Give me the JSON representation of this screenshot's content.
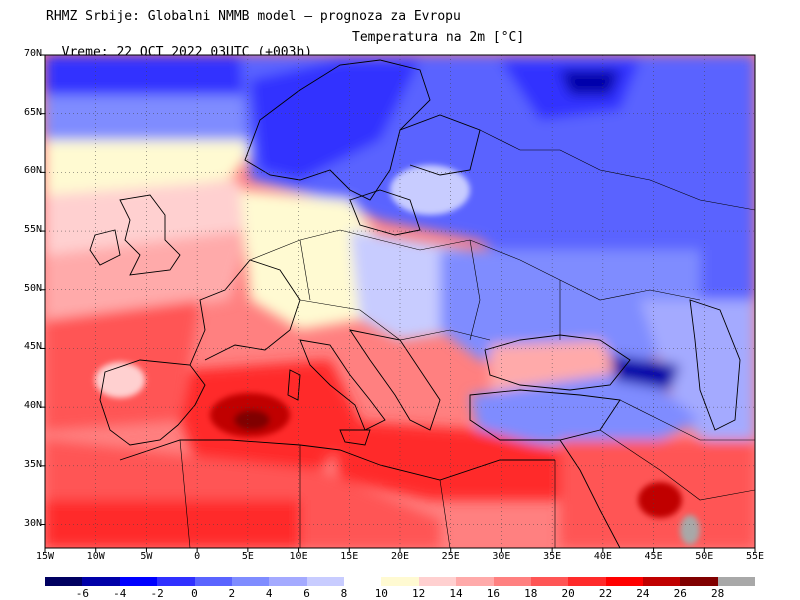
{
  "header": {
    "line1": "RHMZ Srbije: Globalni NMMB model — prognoza za Evropu",
    "line2": "Vreme: 22 OCT 2022 03UTC (+003h)",
    "parameter": "Temperatura na 2m [°C]"
  },
  "map": {
    "lat_ticks": [
      "70N",
      "65N",
      "60N",
      "55N",
      "50N",
      "45N",
      "40N",
      "35N",
      "30N"
    ],
    "lat_values": [
      70,
      65,
      60,
      55,
      50,
      45,
      40,
      35,
      30
    ],
    "lon_ticks": [
      "15W",
      "10W",
      "5W",
      "0",
      "5E",
      "10E",
      "15E",
      "20E",
      "25E",
      "30E",
      "35E",
      "40E",
      "45E",
      "50E",
      "55E"
    ],
    "lon_values": [
      -15,
      -10,
      -5,
      0,
      5,
      10,
      15,
      20,
      25,
      30,
      35,
      40,
      45,
      50,
      55
    ],
    "lon_range": [
      -15,
      55
    ],
    "lat_range": [
      28,
      70
    ]
  },
  "legend": {
    "labels": [
      "-6",
      "-4",
      "-2",
      "0",
      "2",
      "4",
      "6",
      "8",
      "10",
      "12",
      "14",
      "16",
      "18",
      "20",
      "22",
      "24",
      "26",
      "28"
    ],
    "colors": [
      "#000060",
      "#0000a8",
      "#0000ff",
      "#3030ff",
      "#5a64ff",
      "#7f8cff",
      "#a4aaff",
      "#c8ccff",
      "#ffffff",
      "#fffad2",
      "#ffd0d0",
      "#ffaaaa",
      "#ff8080",
      "#ff5555",
      "#ff2a2a",
      "#ff0000",
      "#c00000",
      "#800000",
      "#a8a8a8"
    ]
  }
}
